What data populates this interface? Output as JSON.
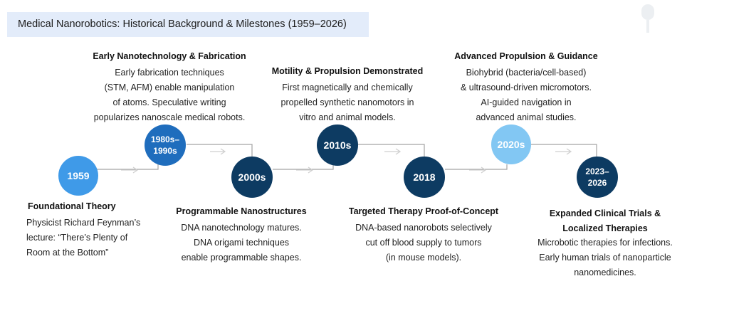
{
  "title": "Medical Nanorobotics: Historical Background & Milestones (1959–2026)",
  "colors": {
    "light_blue": "#3f9ae8",
    "mid_blue": "#1f6dbd",
    "navy": "#0d3b62",
    "pale_blue": "#82c7f3",
    "connector": "#9e9e9e",
    "title_bg": "#e3ecfa"
  },
  "milestones": [
    {
      "label": "1959",
      "heading": "Foundational Theory",
      "text": "Physicist Richard Feynman’s\nlecture: “There’s Plenty of\nRoom at the Bottom”"
    },
    {
      "label": "1980s–\n1990s",
      "heading": "Early Nanotechnology & Fabrication",
      "text": "Early fabrication techniques\n(STM, AFM) enable manipulation\nof atoms. Speculative writing\npopularizes nanoscale medical robots."
    },
    {
      "label": "2000s",
      "heading": "Programmable Nanostructures",
      "text": "DNA nanotechnology matures.\nDNA origami techniques\nenable programmable shapes."
    },
    {
      "label": "2010s",
      "heading": "Motility & Propulsion Demonstrated",
      "text": "First magnetically and chemically\npropelled synthetic nanomotors in\nvitro and animal models."
    },
    {
      "label": "2018",
      "heading": "Targeted Therapy Proof-of-Concept",
      "text": "DNA-based nanorobots selectively\ncut off blood supply to tumors\n(in mouse models)."
    },
    {
      "label": "2020s",
      "heading": "Advanced Propulsion & Guidance",
      "text": "Biohybrid (bacteria/cell-based)\n& ultrasound-driven micromotors.\nAI-guided navigation in\nadvanced animal studies."
    },
    {
      "label": "2023–\n2026",
      "heading": "Expanded Clinical Trials &\nLocalized Therapies",
      "text": "Microbotic therapies for infections.\nEarly human trials of nanoparticle\nnanomedicines."
    }
  ]
}
